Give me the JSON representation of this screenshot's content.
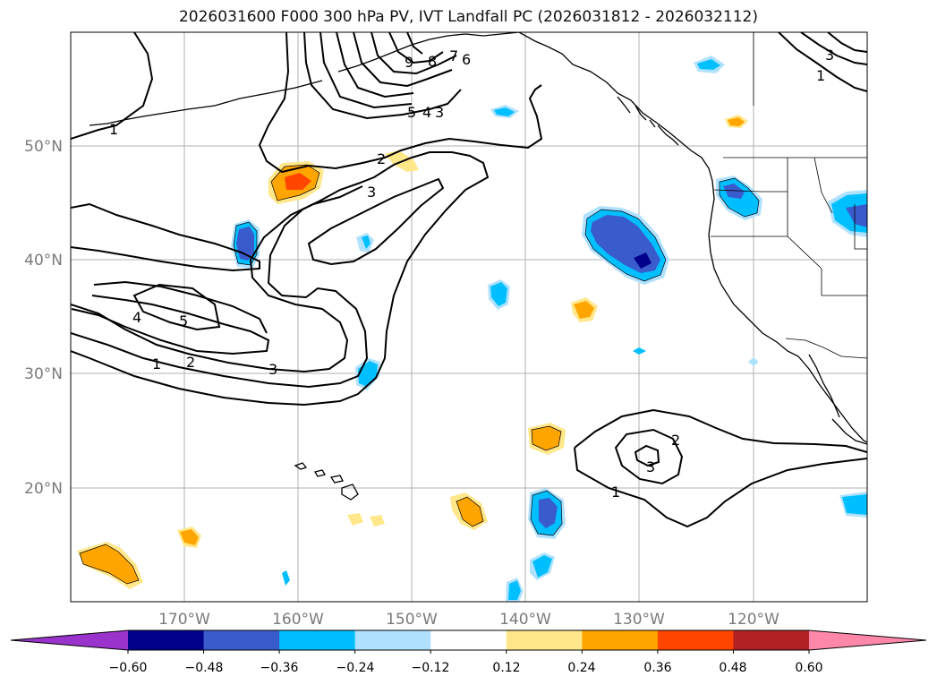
{
  "title": "2026031600 F000 300 hPa PV, IVT Landfall PC (2026031812 - 2026032112)",
  "lat_labels": [
    "50°N",
    "40°N",
    "30°N",
    "20°N"
  ],
  "lon_labels": [
    "170°W",
    "160°W",
    "150°W",
    "140°W",
    "130°W",
    "120°W"
  ],
  "colorbar": {
    "tick_labels": [
      "−0.60",
      "−0.48",
      "−0.36",
      "−0.24",
      "−0.12",
      "0.12",
      "0.24",
      "0.36",
      "0.48",
      "0.60"
    ],
    "colors": [
      "#9933cc",
      "#00008b",
      "#3a5bcc",
      "#00bfff",
      "#b0e2ff",
      "#ffffff",
      "#ffe78a",
      "#ffa500",
      "#ff4500",
      "#b22222",
      "#ff88aa"
    ]
  },
  "contour_labels": {
    "c1a": "1",
    "c9": "9",
    "c8": "8",
    "c7": "7",
    "c6": "6",
    "c5": "5",
    "c4": "4",
    "c3a": "3",
    "c2a": "2",
    "c3b": "3",
    "c4b": "4",
    "c5b": "5",
    "c1b": "1",
    "c2b": "2",
    "c3c": "3",
    "c2c": "2",
    "c3d": "3",
    "c1c": "1",
    "c3e": "3",
    "c1d": "1"
  },
  "map": {
    "lon_range": [
      "180°W",
      "110°W"
    ],
    "lat_range": [
      "10°N",
      "60°N"
    ],
    "grid": true
  }
}
